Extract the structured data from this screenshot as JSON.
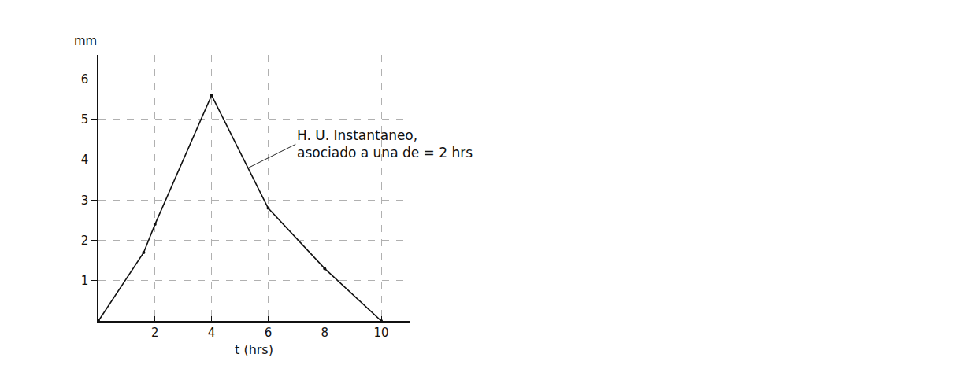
{
  "chart_data": {
    "type": "line",
    "x_label": "t (hrs)",
    "y_label": "mm",
    "x": [
      0,
      1.6,
      2,
      4,
      6,
      8,
      10
    ],
    "values": [
      0,
      1.7,
      2.4,
      5.6,
      2.8,
      1.3,
      0
    ],
    "color": "#111111",
    "marker": "dot",
    "line_style": "solid",
    "xlim": [
      0,
      11
    ],
    "xticks": [
      2,
      4,
      6,
      8,
      10
    ],
    "ylim": [
      0,
      6.6
    ],
    "yticks": [
      1,
      2,
      3,
      4,
      5,
      6
    ],
    "grid": true,
    "annotations": [
      {
        "text": [
          "H. U. Instantaneo,",
          "asociado a una de = 2 hrs"
        ],
        "x": 5.3,
        "y": 3.8
      }
    ]
  }
}
